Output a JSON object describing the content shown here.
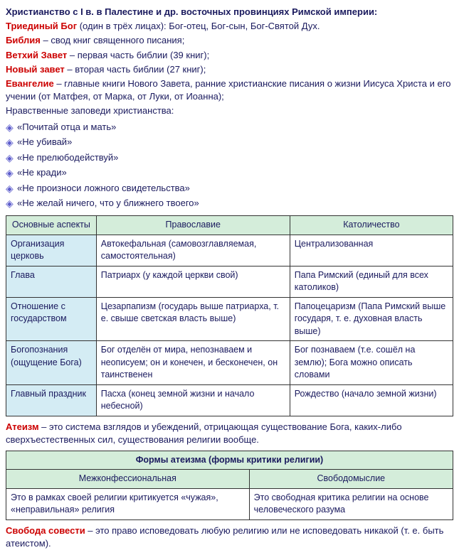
{
  "heading": "Христианство с I в. в Палестине и др. восточных провинциях Римской империи:",
  "terms": [
    {
      "t": "Триединый Бог",
      "d": " (один в трёх лицах): Бог-отец, Бог-сын, Бог-Святой Дух."
    },
    {
      "t": "Библия",
      "d": " – свод книг священного писания;"
    },
    {
      "t": "Ветхий Завет",
      "d": " – первая часть библии (39 книг);"
    },
    {
      "t": "Новый завет",
      "d": " – вторая часть библии (27 книг);"
    },
    {
      "t": "Евангелие",
      "d": " – главные книги Нового Завета, ранние христианские писания о жизни Иисуса Христа и его учении (от Матфея, от Марка, от Луки, от Иоанна);"
    }
  ],
  "moral_intro": "Нравственные заповеди христианства:",
  "commandments": [
    "«Почитай отца и мать»",
    "«Не убивай»",
    "«Не прелюбодействуй»",
    "«Не кради»",
    "«Не произноси ложного свидетельства»",
    "«Не желай ничего, что у ближнего твоего»"
  ],
  "table1": {
    "headers": [
      "Основные аспекты",
      "Православие",
      "Католичество"
    ],
    "rows": [
      [
        "Организация церковь",
        "Автокефальная (самовозглавляемая, самостоятельная)",
        "Централизованная"
      ],
      [
        "Глава",
        "Патриарх (у каждой церкви свой)",
        "Папа Римский (единый для всех католиков)"
      ],
      [
        "Отношение с государством",
        "Цезарпапизм (государь выше патриарха, т. е. свыше светская власть выше)",
        "Папоцецаризм (Папа Римский выше государя, т. е. духовная власть выше)"
      ],
      [
        "Богопознания (ощущение Бога)",
        "Бог отделён от мира, непознаваем и неописуем; он и конечен, и бесконечен, он таинственен",
        "Бог познаваем (т.е. сошёл на землю); Бога можно описать словами"
      ],
      [
        "Главный праздник",
        "Пасха (конец земной жизни и начало небесной)",
        "Рождество (начало земной жизни)"
      ]
    ]
  },
  "atheism_def": {
    "t": "Атеизм",
    "d": " – это система взглядов и убеждений, отрицающая существование Бога, каких-либо сверхъестественных сил, существования религии вообще."
  },
  "table2": {
    "title": "Формы атеизма (формы критики религии)",
    "headers": [
      "Межконфессиональная",
      "Свободомыслие"
    ],
    "rows": [
      [
        "Это в рамках своей религии критикуется «чужая», «неправильная» религия",
        "Это свободная критика религии на основе человеческого разума"
      ]
    ]
  },
  "freedom": {
    "t": "Свобода совести",
    "d": " – это право исповедовать любую религию или не исповедовать никакой (т. е. быть атеистом)."
  }
}
